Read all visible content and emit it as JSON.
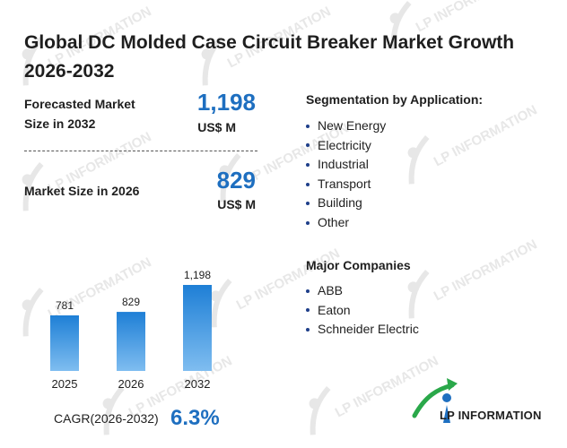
{
  "title": "Global DC Molded Case Circuit Breaker Market Growth 2026-2032",
  "forecast": {
    "label_line1": "Forecasted Market",
    "label_line2": "Size in 2032",
    "value": "1,198",
    "unit": "US$ M"
  },
  "current": {
    "label": "Market Size in 2026",
    "value": "829",
    "unit": "US$ M"
  },
  "chart_data": {
    "type": "bar",
    "categories": [
      "2025",
      "2026",
      "2032"
    ],
    "values": [
      781,
      829,
      1198
    ],
    "value_labels": [
      "781",
      "829",
      "1,198"
    ],
    "title": "",
    "xlabel": "",
    "ylabel": "",
    "ylim": [
      0,
      1300
    ],
    "grid": false,
    "bar_color": "#1e7fd6"
  },
  "cagr": {
    "label": "CAGR(2026-2032)",
    "value": "6.3%"
  },
  "segmentation": {
    "title": "Segmentation by Application:",
    "items": [
      "New Energy",
      "Electricity",
      "Industrial",
      "Transport",
      "Building",
      "Other"
    ]
  },
  "companies": {
    "title": "Major Companies",
    "items": [
      "ABB",
      "Eaton",
      "Schneider Electric"
    ]
  },
  "watermark_text": "LP INFORMATION",
  "logo": {
    "text": "LP INFORMATION",
    "icon": "lp-information-logo-icon"
  },
  "colors": {
    "accent": "#1e6fc0",
    "bar": "#1e7fd6",
    "logo_green": "#2aa84a",
    "logo_blue": "#1e6fc0"
  }
}
